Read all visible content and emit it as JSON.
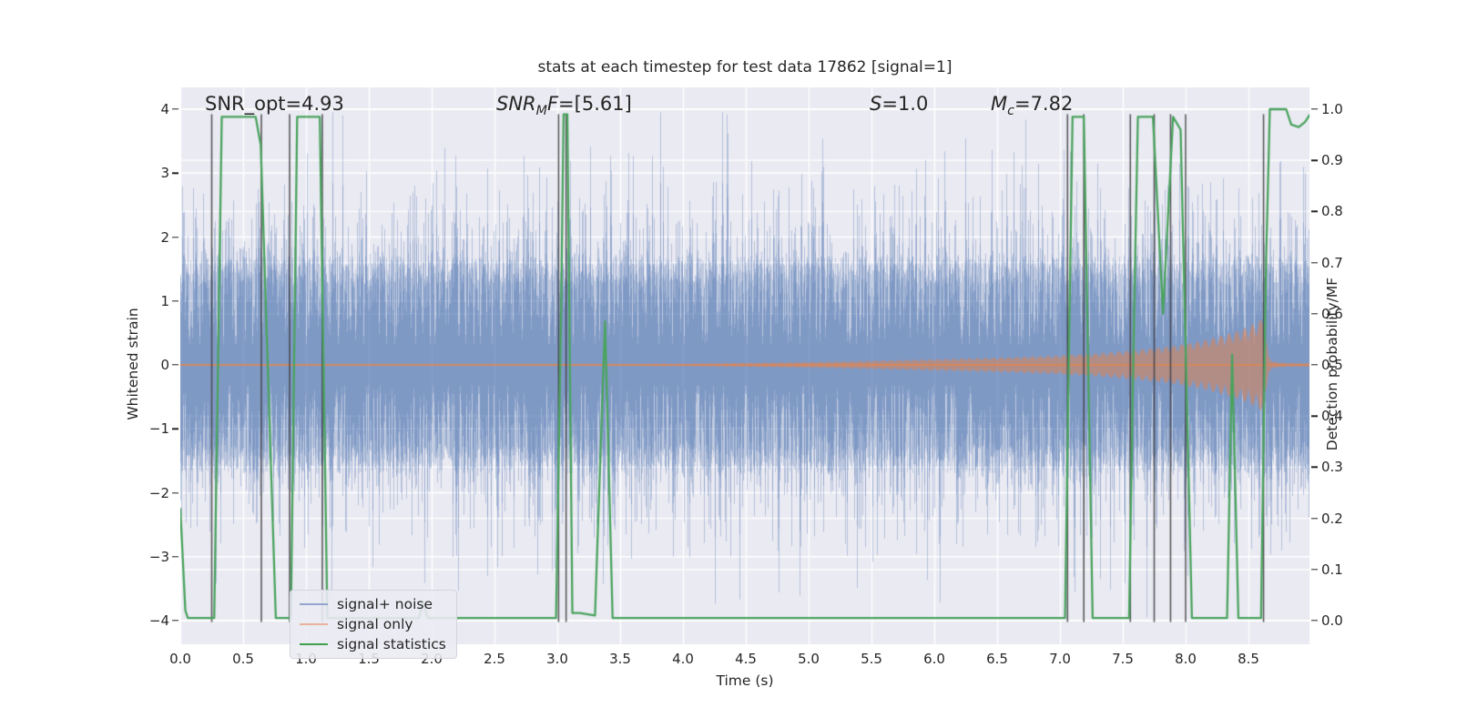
{
  "title": "stats at each timestep for test data 17862 [signal=1]",
  "axes": {
    "left": {
      "label": "Whitened strain",
      "tick_labels": [
        "4",
        "3",
        "2",
        "1",
        "0",
        "−1",
        "−2",
        "−3",
        "−4"
      ],
      "tick_values": [
        4,
        3,
        2,
        1,
        0,
        -1,
        -2,
        -3,
        -4
      ]
    },
    "right": {
      "label": "Detection probability/MF",
      "tick_labels": [
        "1.0",
        "0.9",
        "0.8",
        "0.7",
        "0.6",
        "0.5",
        "0.4",
        "0.3",
        "0.2",
        "0.1",
        "0.0"
      ],
      "tick_values": [
        1.0,
        0.9,
        0.8,
        0.7,
        0.6,
        0.5,
        0.4,
        0.3,
        0.2,
        0.1,
        0.0
      ]
    },
    "bottom": {
      "label": "Time (s)",
      "tick_labels": [
        "0.0",
        "0.5",
        "1.0",
        "1.5",
        "2.0",
        "2.5",
        "3.0",
        "3.5",
        "4.0",
        "4.5",
        "5.0",
        "5.5",
        "6.0",
        "6.5",
        "7.0",
        "7.5",
        "8.0",
        "8.5"
      ],
      "tick_values": [
        0,
        0.5,
        1,
        1.5,
        2,
        2.5,
        3,
        3.5,
        4,
        4.5,
        5,
        5.5,
        6,
        6.5,
        7,
        7.5,
        8,
        8.5
      ]
    }
  },
  "annotations": {
    "snr_opt": {
      "text": "SNR_opt=4.93"
    },
    "snr_mf": {
      "pre": "SNR",
      "sub": "M",
      "mid": "F",
      "post": "=[5.61]"
    },
    "s": {
      "pre": "S",
      "post": "=1.0"
    },
    "mc": {
      "pre": "M",
      "sub": "c",
      "post": "=7.82"
    }
  },
  "legend": {
    "items": [
      {
        "label": "signal+ noise",
        "color": "#93a5cf"
      },
      {
        "label": "signal only",
        "color": "#e8b39a"
      },
      {
        "label": "signal statistics",
        "color": "#3fa04e"
      }
    ]
  },
  "colors": {
    "background": "#eaeaf2",
    "grid": "#ffffff",
    "signal_noise_base": "#4C72B0",
    "signal_only_base": "#DD8452",
    "signal_statistics": "#4aa35e",
    "vline": "#3e3e42",
    "text": "#262626"
  },
  "chart_data": {
    "type": "line",
    "title": "stats at each timestep for test data 17862 [signal=1]",
    "xlabel": "Time (s)",
    "ylabel_left": "Whitened strain",
    "ylabel_right": "Detection probability/MF",
    "xlim": [
      0,
      8.99
    ],
    "ylim_left": [
      -4.37,
      4.34
    ],
    "ylim_right_maps_to_strain": [
      -4,
      4
    ],
    "grid": "both-axes-horizontal, x-every-0.5",
    "legend_position": "lower left",
    "series": [
      {
        "name": "signal+ noise",
        "kind": "dense gaussian noise band",
        "noise_model": {
          "sigma": 1.15,
          "samples_per_pixel": 7,
          "clamp": 3.95,
          "seed": 42,
          "core_half_width": 1.55
        }
      },
      {
        "name": "signal only",
        "kind": "chirp envelope about 0, merger at t≈8.62",
        "envelope_points": [
          [
            0,
            0.012
          ],
          [
            3.0,
            0.012
          ],
          [
            4.0,
            0.018
          ],
          [
            4.5,
            0.03
          ],
          [
            5.0,
            0.045
          ],
          [
            5.5,
            0.065
          ],
          [
            6.0,
            0.09
          ],
          [
            6.5,
            0.115
          ],
          [
            7.0,
            0.15
          ],
          [
            7.3,
            0.185
          ],
          [
            7.6,
            0.235
          ],
          [
            7.9,
            0.3
          ],
          [
            8.1,
            0.37
          ],
          [
            8.3,
            0.47
          ],
          [
            8.45,
            0.56
          ],
          [
            8.55,
            0.66
          ],
          [
            8.62,
            0.74
          ],
          [
            8.64,
            0.45
          ],
          [
            8.66,
            0.12
          ],
          [
            8.7,
            0.05
          ],
          [
            8.8,
            0.03
          ],
          [
            8.99,
            0.025
          ]
        ]
      },
      {
        "name": "signal statistics",
        "kind": "detection probability (right axis)",
        "points": [
          [
            0,
            0.22
          ],
          [
            0.04,
            0.02
          ],
          [
            0.06,
            0.005
          ],
          [
            0.27,
            0.005
          ],
          [
            0.3,
            0.5
          ],
          [
            0.33,
            0.985
          ],
          [
            0.6,
            0.985
          ],
          [
            0.64,
            0.93
          ],
          [
            0.76,
            0.005
          ],
          [
            0.88,
            0.005
          ],
          [
            0.93,
            0.985
          ],
          [
            1.11,
            0.985
          ],
          [
            1.17,
            0.005
          ],
          [
            1.9,
            0.005
          ],
          [
            1.93,
            0.035
          ],
          [
            1.97,
            0.005
          ],
          [
            2.99,
            0.005
          ],
          [
            3.03,
            0.6
          ],
          [
            3.05,
            0.99
          ],
          [
            3.08,
            0.99
          ],
          [
            3.12,
            0.015
          ],
          [
            3.18,
            0.015
          ],
          [
            3.3,
            0.01
          ],
          [
            3.34,
            0.3
          ],
          [
            3.38,
            0.585
          ],
          [
            3.44,
            0.005
          ],
          [
            7.04,
            0.005
          ],
          [
            7.07,
            0.5
          ],
          [
            7.1,
            0.985
          ],
          [
            7.19,
            0.985
          ],
          [
            7.26,
            0.005
          ],
          [
            7.55,
            0.005
          ],
          [
            7.59,
            0.6
          ],
          [
            7.62,
            0.985
          ],
          [
            7.74,
            0.985
          ],
          [
            7.82,
            0.6
          ],
          [
            7.9,
            0.985
          ],
          [
            7.96,
            0.96
          ],
          [
            8.05,
            0.005
          ],
          [
            8.33,
            0.005
          ],
          [
            8.37,
            0.52
          ],
          [
            8.42,
            0.005
          ],
          [
            8.6,
            0.005
          ],
          [
            8.64,
            0.7
          ],
          [
            8.67,
            1.0
          ],
          [
            8.8,
            1.0
          ],
          [
            8.84,
            0.97
          ],
          [
            8.9,
            0.965
          ],
          [
            8.95,
            0.975
          ],
          [
            8.99,
            0.99
          ]
        ]
      }
    ],
    "vertical_marker_times": [
      0.25,
      0.645,
      0.87,
      1.13,
      3.01,
      3.07,
      7.06,
      7.19,
      7.56,
      7.75,
      7.88,
      8.0,
      8.62
    ]
  }
}
